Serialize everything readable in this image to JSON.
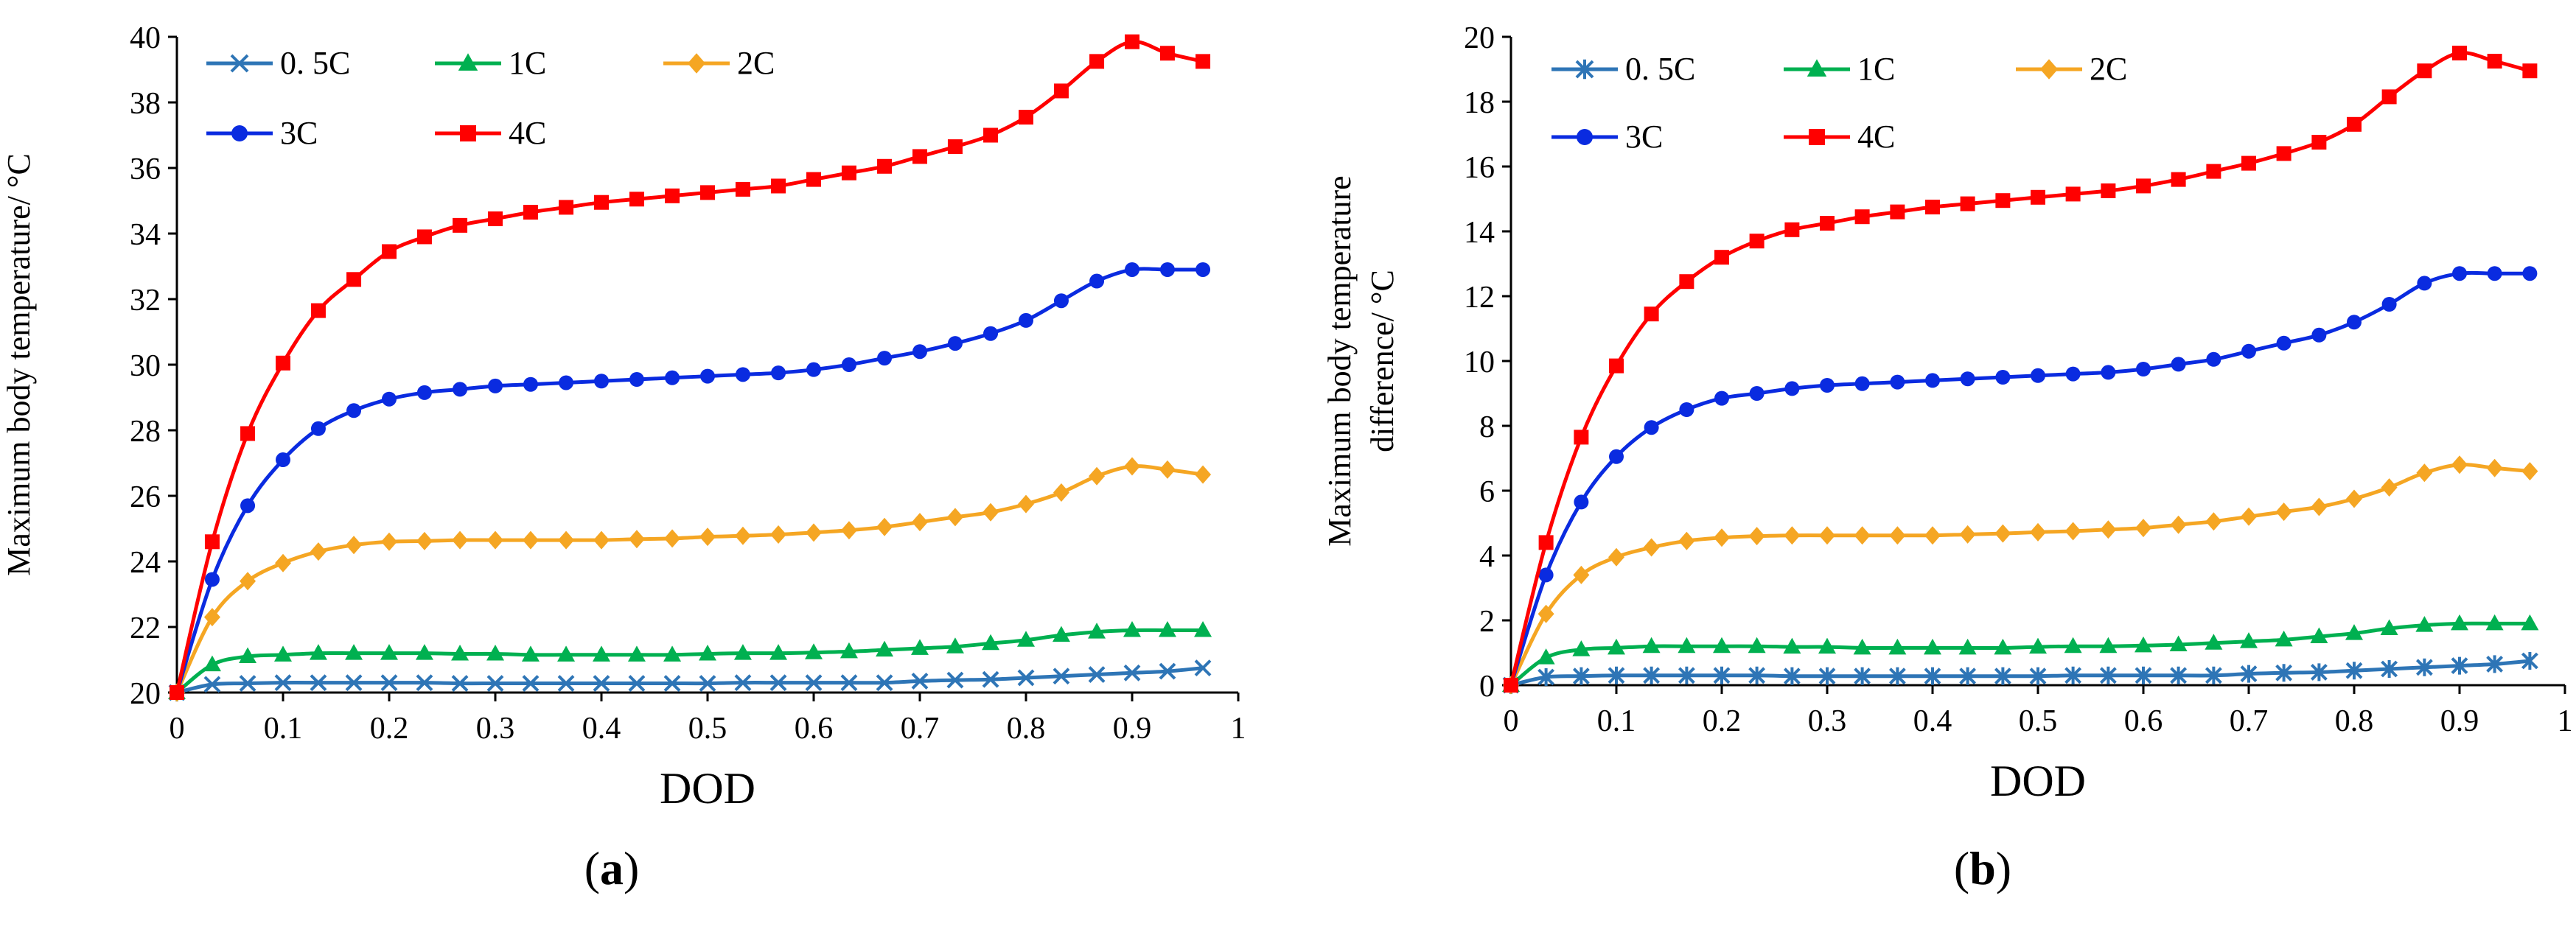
{
  "x": [
    0,
    0.0333,
    0.0667,
    0.1,
    0.1333,
    0.1667,
    0.2,
    0.2333,
    0.2667,
    0.3,
    0.3333,
    0.3667,
    0.4,
    0.4333,
    0.4667,
    0.5,
    0.5333,
    0.5667,
    0.6,
    0.6333,
    0.6667,
    0.7,
    0.7333,
    0.7667,
    0.8,
    0.8333,
    0.8667,
    0.9,
    0.9333,
    0.9667
  ],
  "chart_data": [
    {
      "type": "line",
      "caption_letter": "a",
      "xlabel": "DOD",
      "ylabel": "Maximum body temperature/ °C",
      "xlim": [
        0,
        1
      ],
      "ylim": [
        20,
        40
      ],
      "xticks": [
        "0",
        "0.1",
        "0.2",
        "0.3",
        "0.4",
        "0.5",
        "0.6",
        "0.7",
        "0.8",
        "0.9",
        "1"
      ],
      "yticks": [
        "20",
        "22",
        "24",
        "26",
        "28",
        "30",
        "32",
        "34",
        "36",
        "38",
        "40"
      ],
      "legend_position": "top-left",
      "series": [
        {
          "name": "0. 5C",
          "color": "#2e75b6",
          "marker": "x",
          "values": [
            20.0,
            20.25,
            20.28,
            20.3,
            20.3,
            20.3,
            20.3,
            20.3,
            20.28,
            20.28,
            20.28,
            20.28,
            20.28,
            20.28,
            20.28,
            20.28,
            20.3,
            20.3,
            20.3,
            20.3,
            20.3,
            20.35,
            20.38,
            20.4,
            20.45,
            20.5,
            20.55,
            20.6,
            20.65,
            20.75
          ]
        },
        {
          "name": "1C",
          "color": "#00b050",
          "marker": "triangle",
          "values": [
            20.0,
            20.85,
            21.1,
            21.15,
            21.2,
            21.2,
            21.2,
            21.2,
            21.18,
            21.18,
            21.15,
            21.15,
            21.15,
            21.15,
            21.15,
            21.18,
            21.2,
            21.2,
            21.22,
            21.25,
            21.3,
            21.35,
            21.4,
            21.5,
            21.6,
            21.75,
            21.85,
            21.9,
            21.9,
            21.9
          ]
        },
        {
          "name": "2C",
          "color": "#f5a623",
          "marker": "diamond",
          "values": [
            20.0,
            22.3,
            23.4,
            23.95,
            24.3,
            24.5,
            24.6,
            24.62,
            24.65,
            24.65,
            24.65,
            24.65,
            24.65,
            24.68,
            24.7,
            24.75,
            24.78,
            24.82,
            24.88,
            24.95,
            25.05,
            25.2,
            25.35,
            25.5,
            25.75,
            26.1,
            26.6,
            26.9,
            26.8,
            26.65
          ]
        },
        {
          "name": "3C",
          "color": "#0a2be0",
          "marker": "circle",
          "values": [
            20.0,
            23.45,
            25.7,
            27.1,
            28.05,
            28.6,
            28.95,
            29.15,
            29.25,
            29.35,
            29.4,
            29.45,
            29.5,
            29.55,
            29.6,
            29.65,
            29.7,
            29.75,
            29.85,
            30.0,
            30.2,
            30.4,
            30.65,
            30.95,
            31.35,
            31.95,
            32.55,
            32.9,
            32.9,
            32.9
          ]
        },
        {
          "name": "4C",
          "color": "#ff0000",
          "marker": "square",
          "values": [
            20.0,
            24.6,
            27.9,
            30.05,
            31.65,
            32.6,
            33.45,
            33.9,
            34.25,
            34.45,
            34.65,
            34.8,
            34.95,
            35.05,
            35.15,
            35.25,
            35.35,
            35.45,
            35.65,
            35.85,
            36.05,
            36.35,
            36.65,
            37.0,
            37.55,
            38.35,
            39.25,
            39.85,
            39.5,
            39.25
          ]
        }
      ]
    },
    {
      "type": "line",
      "caption_letter": "b",
      "xlabel": "DOD",
      "ylabel": [
        "Maximum body temperature",
        "difference/ °C"
      ],
      "xlim": [
        0,
        1
      ],
      "ylim": [
        0,
        20
      ],
      "xticks": [
        "0",
        "0.1",
        "0.2",
        "0.3",
        "0.4",
        "0.5",
        "0.6",
        "0.7",
        "0.8",
        "0.9",
        "1"
      ],
      "yticks": [
        "0",
        "2",
        "4",
        "6",
        "8",
        "10",
        "12",
        "14",
        "16",
        "18",
        "20"
      ],
      "legend_position": "top-left",
      "series": [
        {
          "name": "0. 5C",
          "color": "#2e75b6",
          "marker": "asterisk",
          "values": [
            0.0,
            0.25,
            0.28,
            0.3,
            0.3,
            0.3,
            0.3,
            0.3,
            0.28,
            0.28,
            0.28,
            0.28,
            0.28,
            0.28,
            0.28,
            0.28,
            0.3,
            0.3,
            0.3,
            0.3,
            0.3,
            0.35,
            0.38,
            0.4,
            0.45,
            0.5,
            0.55,
            0.6,
            0.65,
            0.75
          ]
        },
        {
          "name": "1C",
          "color": "#00b050",
          "marker": "triangle",
          "values": [
            0.0,
            0.85,
            1.1,
            1.15,
            1.2,
            1.2,
            1.2,
            1.2,
            1.18,
            1.18,
            1.15,
            1.15,
            1.15,
            1.15,
            1.15,
            1.18,
            1.2,
            1.2,
            1.22,
            1.25,
            1.3,
            1.35,
            1.4,
            1.5,
            1.6,
            1.75,
            1.85,
            1.9,
            1.9,
            1.9
          ]
        },
        {
          "name": "2C",
          "color": "#f5a623",
          "marker": "diamond",
          "values": [
            0.0,
            2.2,
            3.4,
            3.95,
            4.25,
            4.45,
            4.55,
            4.6,
            4.62,
            4.62,
            4.62,
            4.62,
            4.62,
            4.65,
            4.68,
            4.72,
            4.75,
            4.8,
            4.85,
            4.95,
            5.05,
            5.2,
            5.35,
            5.5,
            5.75,
            6.1,
            6.55,
            6.8,
            6.7,
            6.6
          ]
        },
        {
          "name": "3C",
          "color": "#0a2be0",
          "marker": "circle",
          "values": [
            0.0,
            3.4,
            5.65,
            7.05,
            7.95,
            8.5,
            8.85,
            9.0,
            9.15,
            9.25,
            9.3,
            9.35,
            9.4,
            9.45,
            9.5,
            9.55,
            9.6,
            9.65,
            9.75,
            9.9,
            10.05,
            10.3,
            10.55,
            10.8,
            11.2,
            11.75,
            12.4,
            12.7,
            12.7,
            12.7
          ]
        },
        {
          "name": "4C",
          "color": "#ff0000",
          "marker": "square",
          "values": [
            0.0,
            4.4,
            7.65,
            9.85,
            11.45,
            12.45,
            13.2,
            13.7,
            14.05,
            14.25,
            14.45,
            14.6,
            14.75,
            14.85,
            14.95,
            15.05,
            15.15,
            15.25,
            15.4,
            15.6,
            15.85,
            16.1,
            16.4,
            16.75,
            17.3,
            18.15,
            18.95,
            19.5,
            19.25,
            18.95
          ]
        }
      ]
    }
  ]
}
